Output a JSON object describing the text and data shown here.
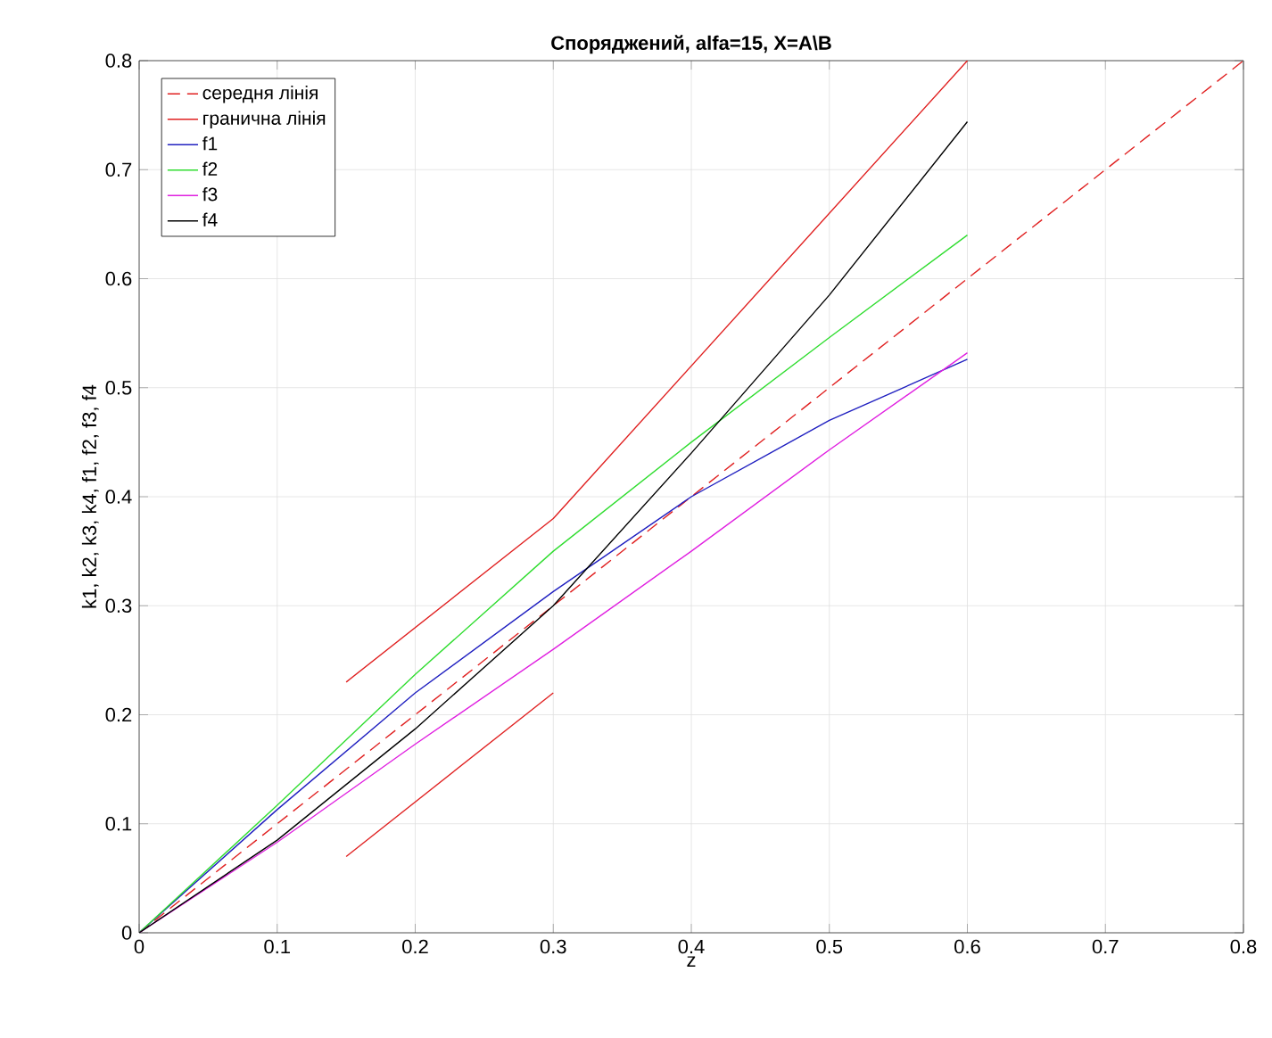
{
  "chart_data": {
    "type": "line",
    "title": "Споряджений, alfa=15, X=A\\B",
    "xlabel": "z",
    "ylabel": "k1, k2, k3, k4, f1, f2, f3, f4",
    "xlim": [
      0,
      0.8
    ],
    "ylim": [
      0,
      0.8
    ],
    "xticks": [
      0,
      0.1,
      0.2,
      0.3,
      0.4,
      0.5,
      0.6,
      0.7,
      0.8
    ],
    "yticks": [
      0,
      0.1,
      0.2,
      0.3,
      0.4,
      0.5,
      0.6,
      0.7,
      0.8
    ],
    "grid": true,
    "legend": "top left",
    "series": [
      {
        "name": "середня лінія",
        "color": "#e02020",
        "line_style": "dashed",
        "x": [
          0,
          0.8
        ],
        "values": [
          0,
          0.8
        ]
      },
      {
        "name": "гранична лінія",
        "color": "#e02020",
        "line_style": "solid",
        "x": [
          0.15,
          0.3,
          0.6
        ],
        "values": [
          0.23,
          0.38,
          0.8
        ]
      },
      {
        "name": "f1",
        "color": "#2020c0",
        "line_style": "solid",
        "x": [
          0,
          0.1,
          0.2,
          0.3,
          0.4,
          0.5,
          0.6
        ],
        "values": [
          0,
          0.113,
          0.22,
          0.313,
          0.4,
          0.47,
          0.526
        ]
      },
      {
        "name": "f2",
        "color": "#30dd30",
        "line_style": "solid",
        "x": [
          0,
          0.1,
          0.2,
          0.3,
          0.4,
          0.5,
          0.6
        ],
        "values": [
          0,
          0.117,
          0.237,
          0.35,
          0.45,
          0.546,
          0.64
        ]
      },
      {
        "name": "f3",
        "color": "#e020e0",
        "line_style": "solid",
        "x": [
          0,
          0.1,
          0.2,
          0.3,
          0.4,
          0.5,
          0.6
        ],
        "values": [
          0,
          0.083,
          0.173,
          0.26,
          0.35,
          0.443,
          0.532
        ]
      },
      {
        "name": "f4",
        "color": "#000000",
        "line_style": "solid",
        "x": [
          0,
          0.1,
          0.2,
          0.3,
          0.4,
          0.5,
          0.6
        ],
        "values": [
          0,
          0.085,
          0.187,
          0.3,
          0.44,
          0.585,
          0.744
        ]
      },
      {
        "color": "#e02020",
        "line_style": "solid",
        "x": [
          0.15,
          0.3
        ],
        "values": [
          0.07,
          0.22
        ]
      }
    ]
  }
}
